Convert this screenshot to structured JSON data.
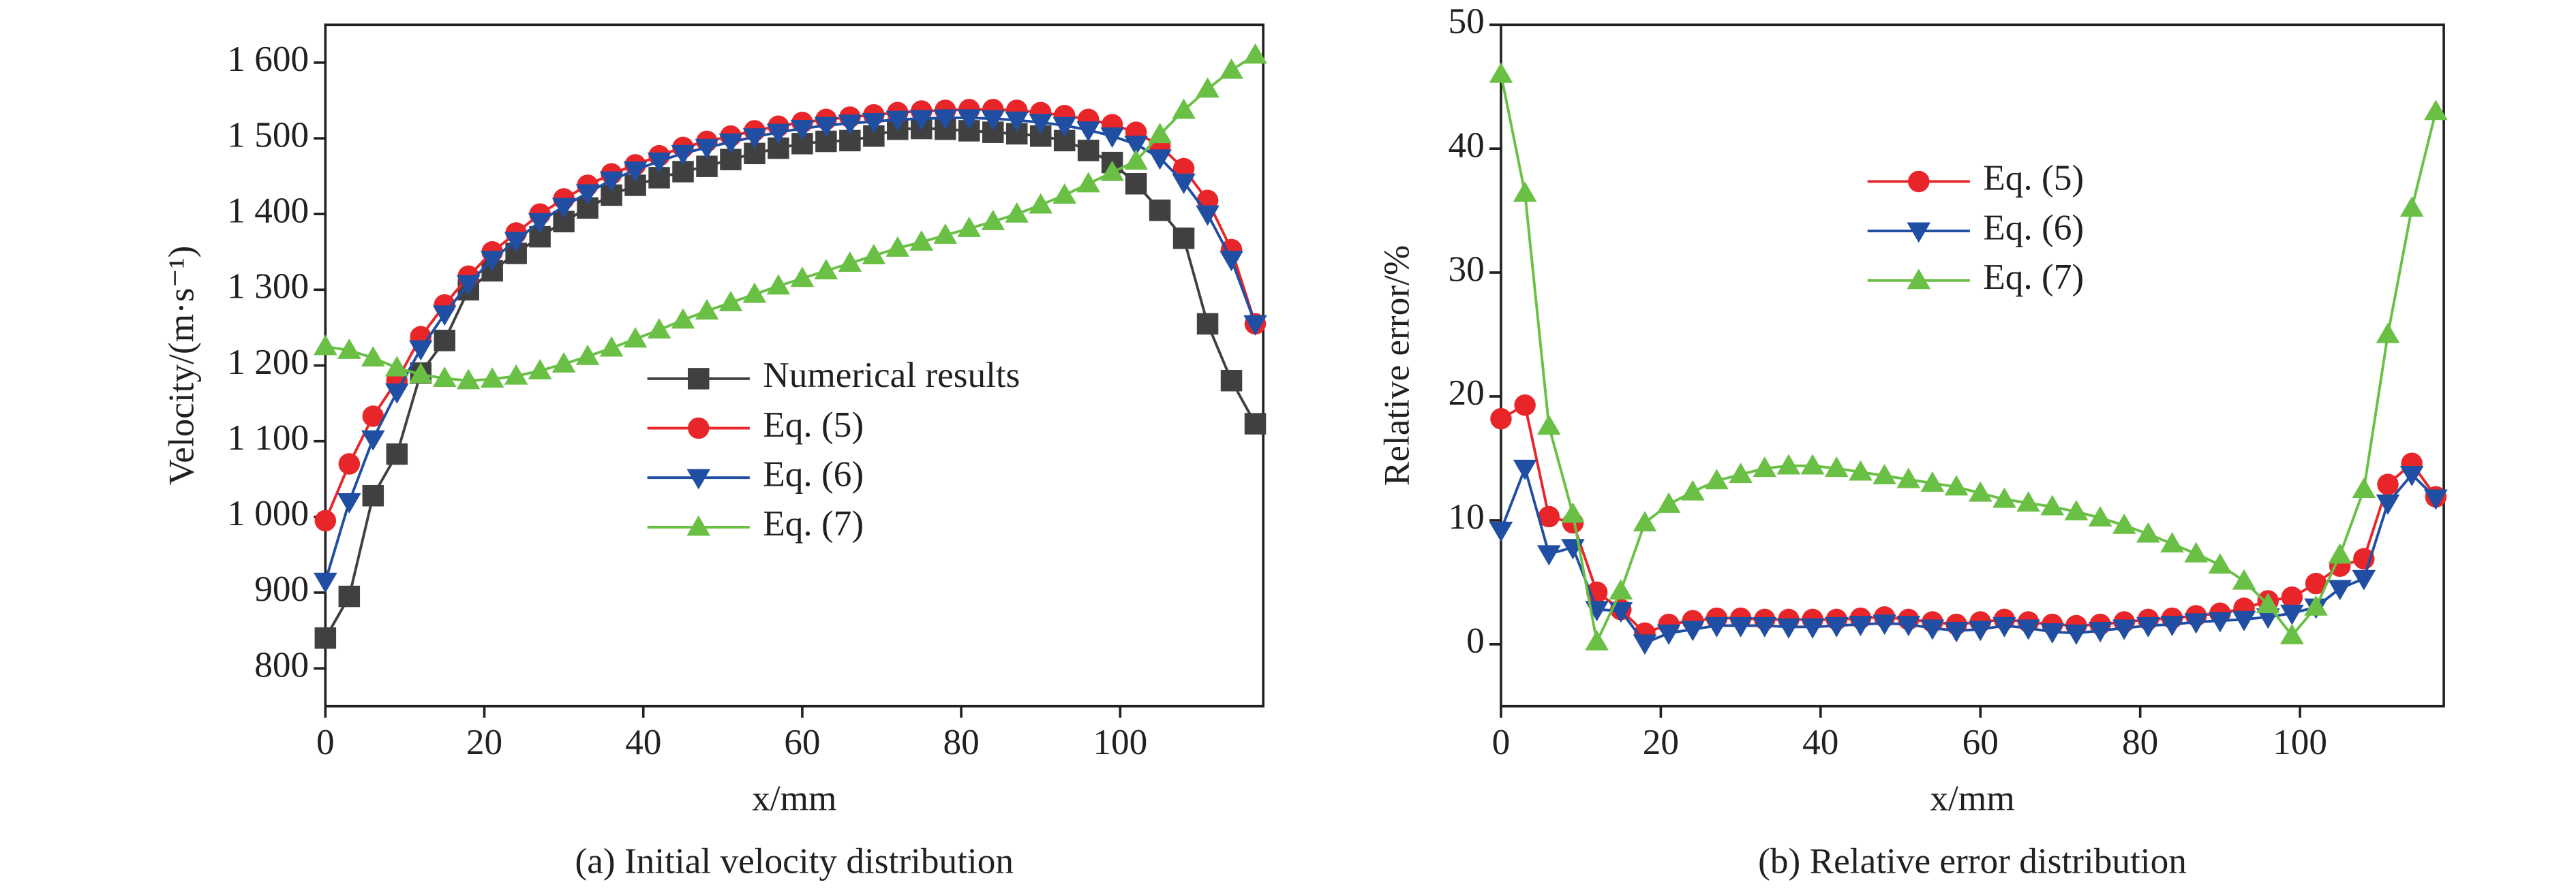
{
  "chart_data": [
    {
      "type": "line",
      "caption": "(a) Initial velocity distribution",
      "xlabel": "x/mm",
      "ylabel": "Velocity/(m·s⁻¹)",
      "x": [
        0,
        3,
        6,
        9,
        12,
        15,
        18,
        21,
        24,
        27,
        30,
        33,
        36,
        39,
        42,
        45,
        48,
        51,
        54,
        57,
        60,
        63,
        66,
        69,
        72,
        75,
        78,
        81,
        84,
        87,
        90,
        93,
        96,
        99,
        102,
        105,
        108,
        111,
        114,
        117
      ],
      "xlim": [
        0,
        118
      ],
      "ylim": [
        750,
        1650
      ],
      "xticks": [
        0,
        20,
        40,
        60,
        80,
        100
      ],
      "yticks": [
        800,
        900,
        {
          "value": 1000,
          "label": "1 000"
        },
        {
          "value": 1100,
          "label": "1 100"
        },
        {
          "value": 1200,
          "label": "1 200"
        },
        {
          "value": 1300,
          "label": "1 300"
        },
        {
          "value": 1400,
          "label": "1 400"
        },
        {
          "value": 1500,
          "label": "1 500"
        },
        {
          "value": 1600,
          "label": "1 600"
        }
      ],
      "legend": "center",
      "series": [
        {
          "name": "Numerical results",
          "color": "#404040",
          "marker": "square",
          "values": [
            840,
            895,
            1028,
            1083,
            1190,
            1233,
            1300,
            1325,
            1348,
            1370,
            1390,
            1408,
            1425,
            1438,
            1448,
            1456,
            1463,
            1472,
            1480,
            1487,
            1493,
            1496,
            1497,
            1503,
            1512,
            1513,
            1512,
            1510,
            1508,
            1506,
            1503,
            1497,
            1484,
            1468,
            1440,
            1405,
            1368,
            1255,
            1180,
            1123
          ]
        },
        {
          "name": "Eq. (5)",
          "color": "#e8262a",
          "marker": "circle",
          "values": [
            995,
            1070,
            1133,
            1180,
            1238,
            1280,
            1318,
            1350,
            1375,
            1400,
            1420,
            1438,
            1453,
            1465,
            1477,
            1488,
            1496,
            1503,
            1510,
            1516,
            1521,
            1525,
            1528,
            1531,
            1534,
            1536,
            1537,
            1538,
            1538,
            1537,
            1534,
            1530,
            1525,
            1518,
            1508,
            1490,
            1460,
            1418,
            1353,
            1255
          ]
        },
        {
          "name": "Eq. (6)",
          "color": "#1f4ea3",
          "marker": "triangle-down",
          "values": [
            915,
            1020,
            1103,
            1165,
            1222,
            1268,
            1308,
            1340,
            1365,
            1390,
            1410,
            1428,
            1445,
            1458,
            1470,
            1480,
            1488,
            1495,
            1502,
            1508,
            1513,
            1517,
            1520,
            1522,
            1525,
            1526,
            1527,
            1527,
            1526,
            1524,
            1521,
            1517,
            1511,
            1503,
            1492,
            1474,
            1442,
            1400,
            1340,
            1255
          ]
        },
        {
          "name": "Eq. (7)",
          "color": "#6abf45",
          "marker": "triangle-up",
          "values": [
            1225,
            1220,
            1210,
            1197,
            1188,
            1183,
            1180,
            1182,
            1186,
            1193,
            1202,
            1212,
            1223,
            1235,
            1247,
            1260,
            1272,
            1283,
            1294,
            1305,
            1315,
            1325,
            1335,
            1345,
            1355,
            1363,
            1372,
            1381,
            1390,
            1400,
            1412,
            1425,
            1440,
            1455,
            1470,
            1505,
            1537,
            1565,
            1590,
            1610
          ]
        }
      ]
    },
    {
      "type": "line",
      "caption": "(b) Relative error distribution",
      "xlabel": "x/mm",
      "ylabel": "Relative error/%",
      "x": [
        0,
        3,
        6,
        9,
        12,
        15,
        18,
        21,
        24,
        27,
        30,
        33,
        36,
        39,
        42,
        45,
        48,
        51,
        54,
        57,
        60,
        63,
        66,
        69,
        72,
        75,
        78,
        81,
        84,
        87,
        90,
        93,
        96,
        99,
        102,
        105,
        108,
        111,
        114,
        117
      ],
      "xlim": [
        0,
        118
      ],
      "ylim": [
        -5,
        50
      ],
      "xticks": [
        0,
        20,
        40,
        60,
        80,
        100
      ],
      "yticks": [
        0,
        10,
        20,
        30,
        40,
        50
      ],
      "legend": "upper left",
      "series": [
        {
          "name": "Eq. (5)",
          "color": "#e8262a",
          "marker": "circle",
          "values": [
            18.2,
            19.3,
            10.3,
            9.8,
            4.2,
            2.8,
            0.9,
            1.6,
            1.9,
            2.1,
            2.1,
            2.0,
            2.0,
            2.0,
            2.0,
            2.1,
            2.2,
            2.0,
            1.8,
            1.6,
            1.8,
            2.0,
            1.8,
            1.6,
            1.5,
            1.6,
            1.8,
            2.0,
            2.1,
            2.3,
            2.5,
            2.9,
            3.5,
            3.8,
            4.9,
            6.3,
            6.9,
            12.9,
            14.6,
            11.9
          ]
        },
        {
          "name": "Eq. (6)",
          "color": "#1f4ea3",
          "marker": "triangle-down",
          "values": [
            9.2,
            14.2,
            7.3,
            7.8,
            2.8,
            2.7,
            0.1,
            0.9,
            1.2,
            1.5,
            1.5,
            1.5,
            1.4,
            1.4,
            1.5,
            1.6,
            1.7,
            1.6,
            1.3,
            1.1,
            1.2,
            1.5,
            1.3,
            1.0,
            0.9,
            1.1,
            1.3,
            1.5,
            1.6,
            1.8,
            1.9,
            2.0,
            2.2,
            2.5,
            3.0,
            4.5,
            5.3,
            11.4,
            13.7,
            11.8
          ]
        },
        {
          "name": "Eq. (7)",
          "color": "#6abf45",
          "marker": "triangle-up",
          "values": [
            46,
            36.4,
            17.6,
            10.5,
            0.2,
            4.3,
            9.8,
            11.3,
            12.3,
            13.2,
            13.7,
            14.2,
            14.4,
            14.4,
            14.2,
            13.9,
            13.6,
            13.3,
            13.0,
            12.7,
            12.2,
            11.7,
            11.4,
            11.1,
            10.7,
            10.2,
            9.6,
            8.9,
            8.1,
            7.3,
            6.4,
            5.1,
            3.2,
            0.7,
            3.0,
            7.2,
            12.5,
            25,
            35.2,
            43
          ]
        }
      ]
    }
  ]
}
